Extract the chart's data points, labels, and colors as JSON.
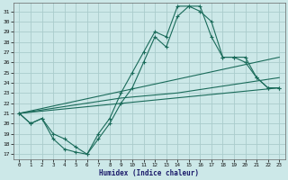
{
  "xlabel": "Humidex (Indice chaleur)",
  "background_color": "#cce8e8",
  "grid_color": "#aacccc",
  "line_color": "#1a6b5a",
  "xlim": [
    -0.5,
    23.5
  ],
  "ylim": [
    16.5,
    31.8
  ],
  "xticks": [
    0,
    1,
    2,
    3,
    4,
    5,
    6,
    7,
    8,
    9,
    10,
    11,
    12,
    13,
    14,
    15,
    16,
    17,
    18,
    19,
    20,
    21,
    22,
    23
  ],
  "yticks": [
    17,
    18,
    19,
    20,
    21,
    22,
    23,
    24,
    25,
    26,
    27,
    28,
    29,
    30,
    31
  ],
  "line_up_x": [
    0,
    1,
    2,
    3,
    4,
    5,
    6,
    7,
    8,
    9,
    10,
    11,
    12,
    13,
    14,
    15,
    16,
    17,
    18,
    19,
    20,
    21,
    22,
    23
  ],
  "line_up_y": [
    21.0,
    20.0,
    20.5,
    18.5,
    17.5,
    17.2,
    17.0,
    19.0,
    20.5,
    23.0,
    25.0,
    27.0,
    29.0,
    28.5,
    31.5,
    31.5,
    31.0,
    30.0,
    26.5,
    26.5,
    26.5,
    24.5,
    23.5,
    23.5
  ],
  "line_low_x": [
    0,
    1,
    2,
    3,
    4,
    5,
    6,
    7,
    8,
    9,
    10,
    11,
    12,
    13,
    14,
    15,
    16,
    17,
    18,
    19,
    20,
    21,
    22,
    23
  ],
  "line_low_y": [
    21.0,
    20.0,
    20.5,
    19.0,
    18.5,
    17.7,
    17.0,
    18.5,
    20.0,
    22.0,
    23.5,
    26.0,
    28.5,
    27.5,
    30.5,
    31.5,
    31.5,
    28.5,
    26.5,
    26.5,
    26.0,
    24.5,
    23.5,
    23.5
  ],
  "trend1_x": [
    0,
    23
  ],
  "trend1_y": [
    21.0,
    23.5
  ],
  "trend2_x": [
    0,
    9,
    14,
    23
  ],
  "trend2_y": [
    21.0,
    22.5,
    23.0,
    24.5
  ],
  "trend3_x": [
    0,
    23
  ],
  "trend3_y": [
    21.0,
    26.5
  ]
}
